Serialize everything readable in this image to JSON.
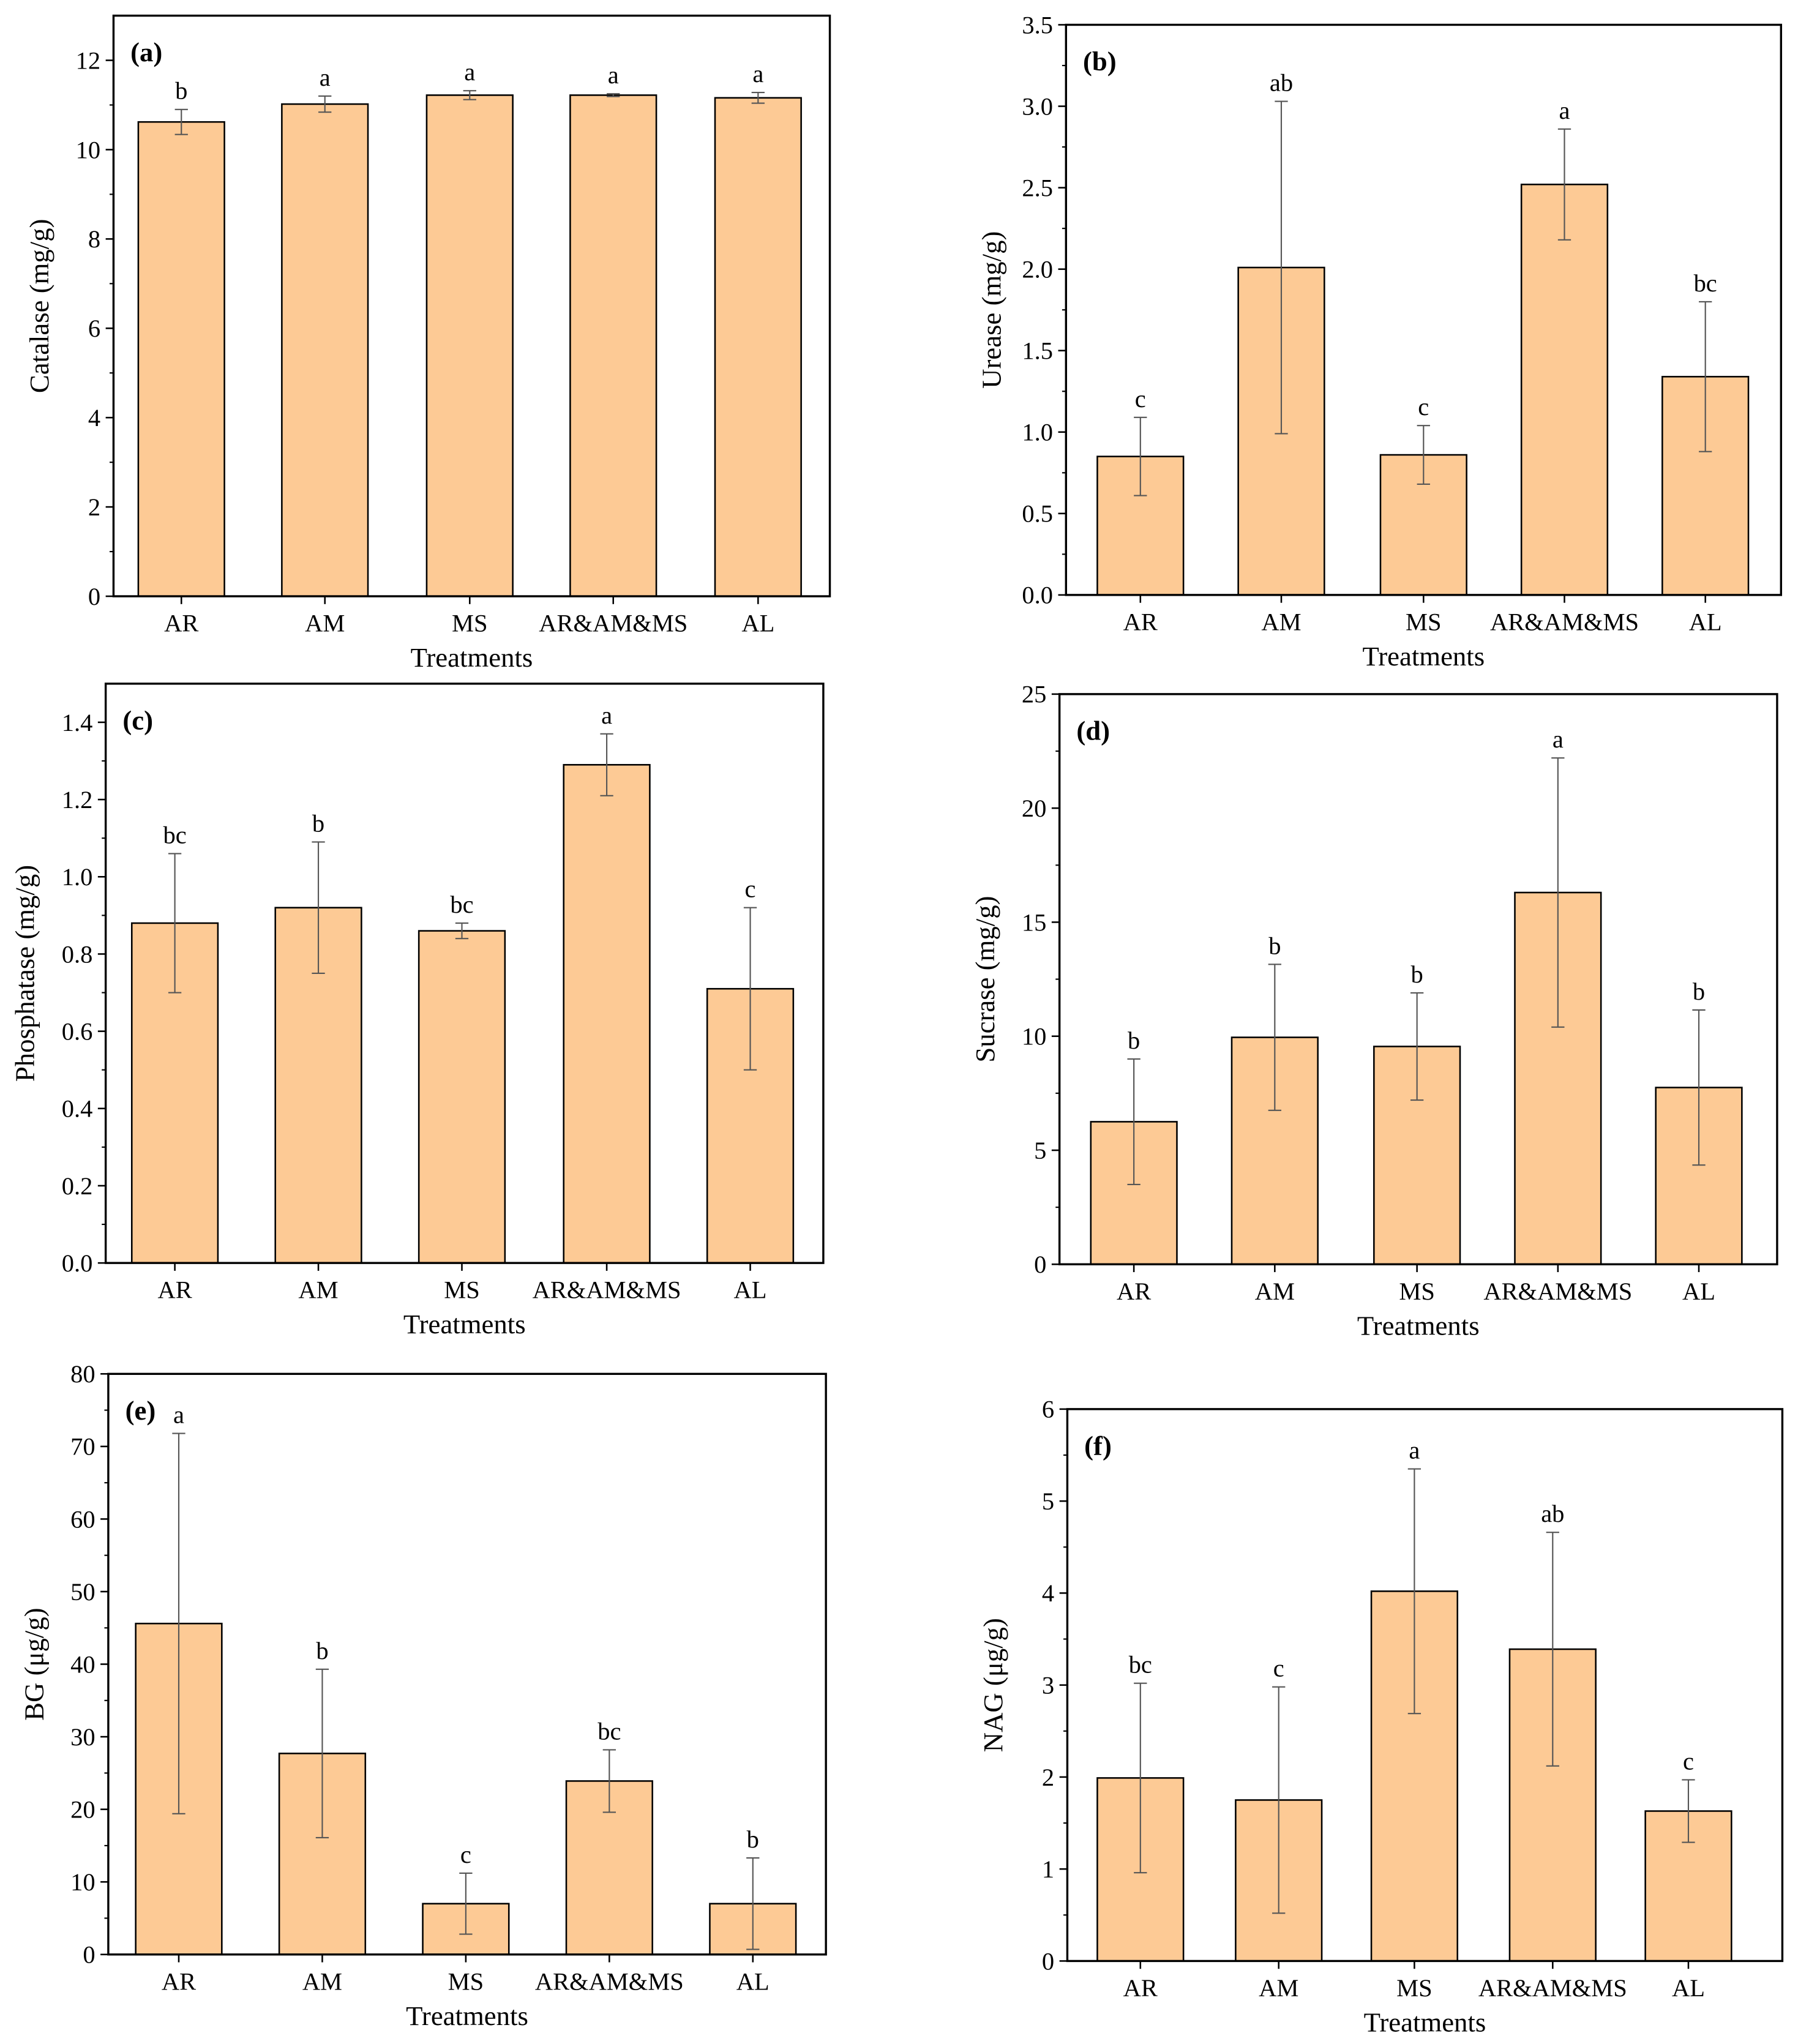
{
  "colors": {
    "bar_fill": "#FDCA95",
    "bar_stroke": "#000000",
    "error_bar": "#555555",
    "axis": "#000000"
  },
  "chart_data": [
    {
      "type": "bar",
      "panel_label": "(a)",
      "categories": [
        "AR",
        "AM",
        "MS",
        "AR&AM&MS",
        "AL"
      ],
      "values": [
        10.62,
        11.02,
        11.22,
        11.22,
        11.16
      ],
      "errors": [
        0.28,
        0.18,
        0.1,
        0.03,
        0.12
      ],
      "significance": [
        "b",
        "a",
        "a",
        "a",
        "a"
      ],
      "xlabel": "Treatments",
      "ylabel": "Catalase (mg/g)",
      "ylim": [
        0,
        13
      ],
      "yticks": [
        0,
        2,
        4,
        6,
        8,
        10,
        12
      ],
      "ytick_labels": [
        "0",
        "2",
        "4",
        "6",
        "8",
        "10",
        "12"
      ]
    },
    {
      "type": "bar",
      "panel_label": "(b)",
      "categories": [
        "AR",
        "AM",
        "MS",
        "AR&AM&MS",
        "AL"
      ],
      "values": [
        0.85,
        2.01,
        0.86,
        2.52,
        1.34
      ],
      "errors": [
        0.24,
        1.02,
        0.18,
        0.34,
        0.46
      ],
      "significance": [
        "c",
        "ab",
        "c",
        "a",
        "bc"
      ],
      "xlabel": "Treatments",
      "ylabel": "Urease (mg/g)",
      "ylim": [
        0,
        3.5
      ],
      "yticks": [
        0,
        0.5,
        1,
        1.5,
        2,
        2.5,
        3,
        3.5
      ],
      "ytick_labels": [
        "0.0",
        "0.5",
        "1.0",
        "1.5",
        "2.0",
        "2.5",
        "3.0",
        "3.5"
      ]
    },
    {
      "type": "bar",
      "panel_label": "(c)",
      "categories": [
        "AR",
        "AM",
        "MS",
        "AR&AM&MS",
        "AL"
      ],
      "values": [
        0.88,
        0.92,
        0.86,
        1.29,
        0.71
      ],
      "errors": [
        0.18,
        0.17,
        0.02,
        0.08,
        0.21
      ],
      "significance": [
        "bc",
        "b",
        "bc",
        "a",
        "c"
      ],
      "xlabel": "Treatments",
      "ylabel": "Phosphatase (mg/g)",
      "ylim": [
        0,
        1.5
      ],
      "yticks": [
        0,
        0.2,
        0.4,
        0.6,
        0.8,
        1,
        1.2,
        1.4
      ],
      "ytick_labels": [
        "0.0",
        "0.2",
        "0.4",
        "0.6",
        "0.8",
        "1.0",
        "1.2",
        "1.4"
      ]
    },
    {
      "type": "bar",
      "panel_label": "(d)",
      "categories": [
        "AR",
        "AM",
        "MS",
        "AR&AM&MS",
        "AL"
      ],
      "values": [
        6.25,
        9.95,
        9.55,
        16.3,
        7.75
      ],
      "errors": [
        2.75,
        3.2,
        2.35,
        5.9,
        3.4
      ],
      "significance": [
        "b",
        "b",
        "b",
        "a",
        "b"
      ],
      "xlabel": "Treatments",
      "ylabel": "Sucrase (mg/g)",
      "ylim": [
        0,
        25
      ],
      "yticks": [
        0,
        5,
        10,
        15,
        20,
        25
      ],
      "ytick_labels": [
        "0",
        "5",
        "10",
        "15",
        "20",
        "25"
      ]
    },
    {
      "type": "bar",
      "panel_label": "(e)",
      "categories": [
        "AR",
        "AM",
        "MS",
        "AR&AM&MS",
        "AL"
      ],
      "values": [
        45.6,
        27.7,
        7.0,
        23.9,
        7.0
      ],
      "errors": [
        26.2,
        11.6,
        4.2,
        4.3,
        6.3
      ],
      "significance": [
        "a",
        "b",
        "c",
        "bc",
        "b"
      ],
      "xlabel": "Treatments",
      "ylabel": "BG (μg/g)",
      "ylim": [
        0,
        80
      ],
      "yticks": [
        0,
        10,
        20,
        30,
        40,
        50,
        60,
        70,
        80
      ],
      "ytick_labels": [
        "0",
        "10",
        "20",
        "30",
        "40",
        "50",
        "60",
        "70",
        "80"
      ]
    },
    {
      "type": "bar",
      "panel_label": "(f)",
      "categories": [
        "AR",
        "AM",
        "MS",
        "AR&AM&MS",
        "AL"
      ],
      "values": [
        1.99,
        1.75,
        4.02,
        3.39,
        1.63
      ],
      "errors": [
        1.03,
        1.23,
        1.33,
        1.27,
        0.34
      ],
      "significance": [
        "bc",
        "c",
        "a",
        "ab",
        "c"
      ],
      "xlabel": "Treatments",
      "ylabel": "NAG (μg/g)",
      "ylim": [
        0,
        6
      ],
      "yticks": [
        0,
        1,
        2,
        3,
        4,
        5,
        6
      ],
      "ytick_labels": [
        "0",
        "1",
        "2",
        "3",
        "4",
        "5",
        "6"
      ]
    }
  ]
}
